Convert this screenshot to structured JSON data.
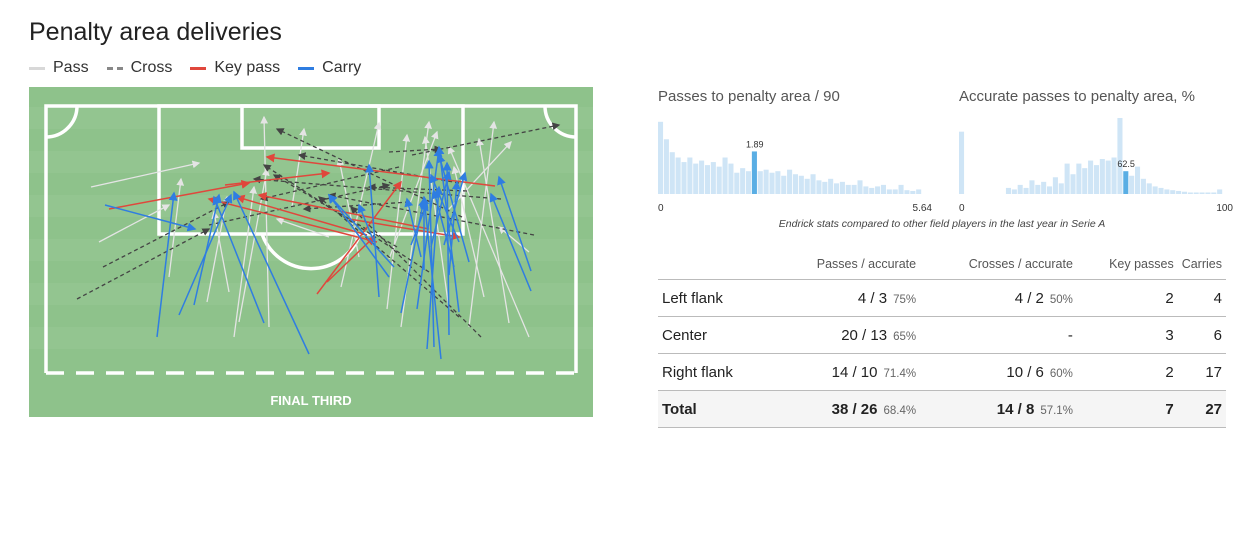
{
  "title": "Penalty area deliveries",
  "legend": [
    {
      "label": "Pass",
      "color": "#d8d8d8",
      "style": "solid"
    },
    {
      "label": "Cross",
      "color": "#888888",
      "style": "dashed"
    },
    {
      "label": "Key pass",
      "color": "#e0473c",
      "style": "solid"
    },
    {
      "label": "Carry",
      "color": "#2f7de1",
      "style": "solid"
    }
  ],
  "pitch": {
    "label": "FINAL THIRD",
    "grass_color": "#8ec28b",
    "stripe_color": "#93c590",
    "line_color": "#ffffff"
  },
  "histograms": [
    {
      "title": "Passes to penalty area / 90",
      "min_label": "0",
      "max_label": "5.64",
      "highlight_label": "1.89",
      "highlight_index": 16,
      "bars": [
        0.95,
        0.72,
        0.55,
        0.48,
        0.42,
        0.48,
        0.4,
        0.44,
        0.38,
        0.42,
        0.36,
        0.48,
        0.4,
        0.28,
        0.34,
        0.3,
        0.56,
        0.3,
        0.32,
        0.28,
        0.3,
        0.24,
        0.32,
        0.26,
        0.24,
        0.2,
        0.26,
        0.18,
        0.16,
        0.2,
        0.14,
        0.16,
        0.12,
        0.12,
        0.18,
        0.1,
        0.08,
        0.1,
        0.12,
        0.06,
        0.06,
        0.12,
        0.05,
        0.04,
        0.06
      ]
    },
    {
      "title": "Accurate passes to penalty area, %",
      "min_label": "0",
      "max_label": "100",
      "highlight_label": "62.5",
      "highlight_index": 28,
      "bars": [
        0.82,
        0,
        0,
        0,
        0,
        0,
        0,
        0,
        0.08,
        0.06,
        0.12,
        0.08,
        0.18,
        0.12,
        0.16,
        0.1,
        0.22,
        0.14,
        0.4,
        0.26,
        0.4,
        0.34,
        0.44,
        0.38,
        0.46,
        0.44,
        0.48,
        1.0,
        0.3,
        0.24,
        0.36,
        0.2,
        0.14,
        0.1,
        0.08,
        0.06,
        0.05,
        0.04,
        0.03,
        0.02,
        0.02,
        0.02,
        0.02,
        0.02,
        0.06
      ]
    }
  ],
  "caption": "Endrick stats compared to other field players in the last year in Serie A",
  "table": {
    "headers": [
      "",
      "Passes / accurate",
      "Crosses / accurate",
      "Key passes",
      "Carries"
    ],
    "rows": [
      {
        "label": "Left flank",
        "passes": "4 / 3",
        "passes_pct": "75%",
        "crosses": "4 / 2",
        "crosses_pct": "50%",
        "key_passes": "2",
        "carries": "4"
      },
      {
        "label": "Center",
        "passes": "20 / 13",
        "passes_pct": "65%",
        "crosses": "-",
        "crosses_pct": "",
        "key_passes": "3",
        "carries": "6"
      },
      {
        "label": "Right flank",
        "passes": "14 / 10",
        "passes_pct": "71.4%",
        "crosses": "10 / 6",
        "crosses_pct": "60%",
        "key_passes": "2",
        "carries": "17"
      }
    ],
    "total": {
      "label": "Total",
      "passes": "38 / 26",
      "passes_pct": "68.4%",
      "crosses": "14 / 8",
      "crosses_pct": "57.1%",
      "key_passes": "7",
      "carries": "27"
    }
  },
  "colors": {
    "histogram_bar": "#cfe5f6",
    "histogram_highlight": "#5aaee4",
    "pass": "#d8d8d8",
    "cross": "#555555",
    "key_pass": "#e0473c",
    "carry": "#2f7de1"
  }
}
